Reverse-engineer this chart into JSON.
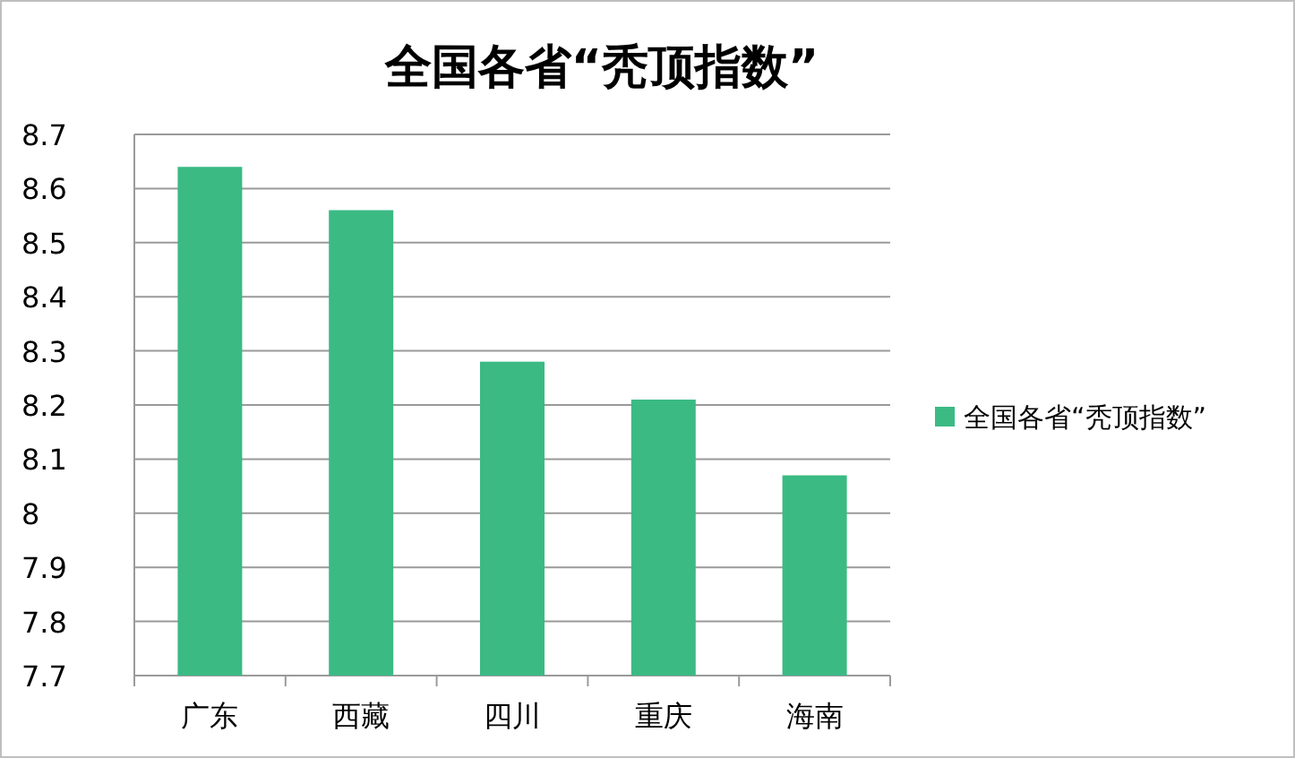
{
  "chart_data": {
    "type": "bar",
    "title": "全国各省“秃顶指数”",
    "categories": [
      "广东",
      "西藏",
      "四川",
      "重庆",
      "海南"
    ],
    "series": [
      {
        "name": "全国各省“秃顶指数”",
        "color": "#3bba84",
        "values": [
          8.64,
          8.56,
          8.28,
          8.21,
          8.07
        ]
      }
    ],
    "ylim": [
      7.7,
      8.7
    ],
    "yticks": [
      7.7,
      7.8,
      7.9,
      8,
      8.1,
      8.2,
      8.3,
      8.4,
      8.5,
      8.6,
      8.7
    ],
    "grid": "y",
    "legend": "right"
  }
}
